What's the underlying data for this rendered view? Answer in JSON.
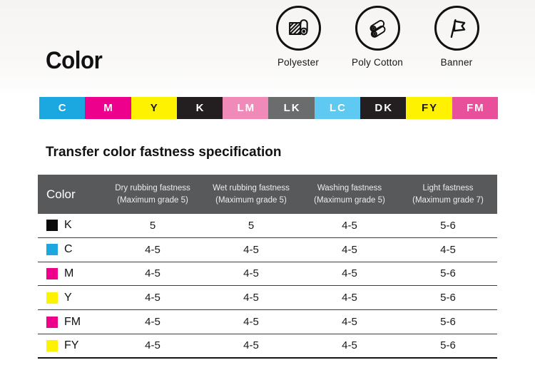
{
  "page": {
    "title": "Color",
    "section_heading": "Transfer color fastness specification"
  },
  "media_types": [
    {
      "label": "Polyester",
      "icon": "fabric-roll-icon"
    },
    {
      "label": "Poly Cotton",
      "icon": "cotton-rolls-icon"
    },
    {
      "label": "Banner",
      "icon": "flag-icon"
    }
  ],
  "color_bar": [
    {
      "code": "C",
      "bg": "#1BA7E0",
      "text": "#FFFFFF"
    },
    {
      "code": "M",
      "bg": "#EC008C",
      "text": "#FFFFFF"
    },
    {
      "code": "Y",
      "bg": "#FFF200",
      "text": "#1A1A1A"
    },
    {
      "code": "K",
      "bg": "#231F20",
      "text": "#FFFFFF"
    },
    {
      "code": "LM",
      "bg": "#F08AB9",
      "text": "#FFFFFF"
    },
    {
      "code": "LK",
      "bg": "#6B6C6E",
      "text": "#FFFFFF"
    },
    {
      "code": "LC",
      "bg": "#5FC9F2",
      "text": "#FFFFFF"
    },
    {
      "code": "DK",
      "bg": "#231F20",
      "text": "#FFFFFF"
    },
    {
      "code": "FY",
      "bg": "#FFF200",
      "text": "#1A1A1A"
    },
    {
      "code": "FM",
      "bg": "#E8509C",
      "text": "#FFFFFF"
    }
  ],
  "table": {
    "header_bg": "#58595B",
    "columns": [
      {
        "label": "Color"
      },
      {
        "line1": "Dry rubbing fastness",
        "line2": "(Maximum grade 5)"
      },
      {
        "line1": "Wet rubbing fastness",
        "line2": "(Maximum grade 5)"
      },
      {
        "line1": "Washing fastness",
        "line2": "(Maximum grade 5)"
      },
      {
        "line1": "Light fastness",
        "line2": "(Maximum grade 7)"
      }
    ],
    "rows": [
      {
        "code": "K",
        "swatch": "#0B0B0B",
        "values": [
          "5",
          "5",
          "4-5",
          "5-6"
        ]
      },
      {
        "code": "C",
        "swatch": "#1BA7E0",
        "values": [
          "4-5",
          "4-5",
          "4-5",
          "4-5"
        ]
      },
      {
        "code": "M",
        "swatch": "#EC008C",
        "values": [
          "4-5",
          "4-5",
          "4-5",
          "5-6"
        ]
      },
      {
        "code": "Y",
        "swatch": "#FFF200",
        "values": [
          "4-5",
          "4-5",
          "4-5",
          "5-6"
        ]
      },
      {
        "code": "FM",
        "swatch": "#EC008C",
        "values": [
          "4-5",
          "4-5",
          "4-5",
          "5-6"
        ]
      },
      {
        "code": "FY",
        "swatch": "#FFF200",
        "values": [
          "4-5",
          "4-5",
          "4-5",
          "5-6"
        ]
      }
    ]
  }
}
